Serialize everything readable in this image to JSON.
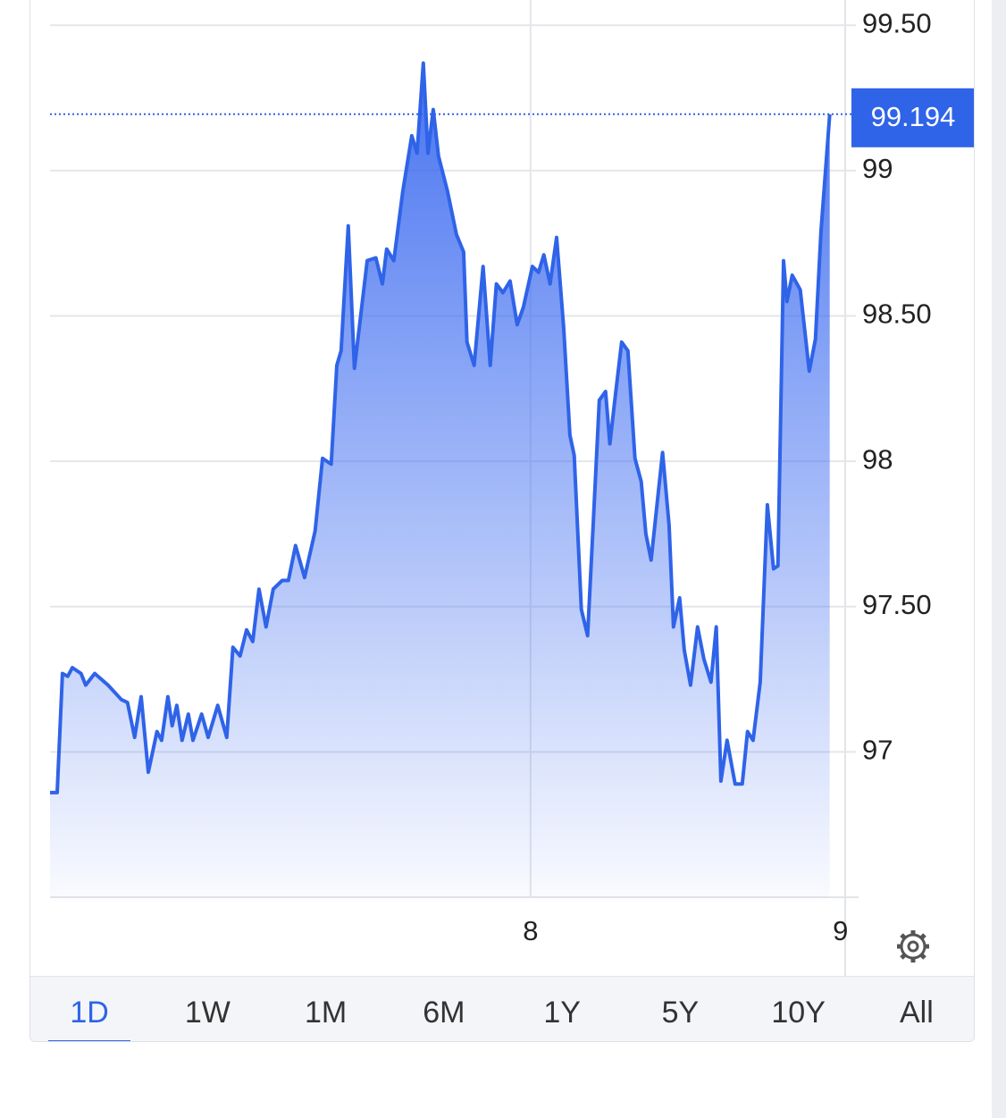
{
  "chart_data": {
    "type": "area",
    "x": [
      6.45,
      6.473,
      6.49,
      6.507,
      6.522,
      6.55,
      6.565,
      6.594,
      6.637,
      6.68,
      6.7,
      6.723,
      6.744,
      6.767,
      6.795,
      6.81,
      6.83,
      6.844,
      6.859,
      6.876,
      6.896,
      6.911,
      6.939,
      6.96,
      6.991,
      7.02,
      7.04,
      7.063,
      7.084,
      7.104,
      7.124,
      7.147,
      7.17,
      7.199,
      7.219,
      7.242,
      7.271,
      7.305,
      7.329,
      7.357,
      7.375,
      7.389,
      7.412,
      7.432,
      7.452,
      7.473,
      7.501,
      7.522,
      7.536,
      7.559,
      7.588,
      7.617,
      7.634,
      7.654,
      7.669,
      7.686,
      7.703,
      7.732,
      7.761,
      7.784,
      7.795,
      7.818,
      7.847,
      7.87,
      7.89,
      7.911,
      7.934,
      7.957,
      7.977,
      8.006,
      8.026,
      8.043,
      8.063,
      8.084,
      8.107,
      8.127,
      8.141,
      8.164,
      8.184,
      8.202,
      8.222,
      8.242,
      8.256,
      8.274,
      8.294,
      8.314,
      8.337,
      8.357,
      8.372,
      8.389,
      8.409,
      8.426,
      8.447,
      8.461,
      8.481,
      8.496,
      8.516,
      8.539,
      8.559,
      8.582,
      8.599,
      8.614,
      8.634,
      8.66,
      8.683,
      8.7,
      8.718,
      8.741,
      8.764,
      8.784,
      8.798,
      8.816,
      8.827,
      8.844,
      8.87,
      8.899,
      8.919,
      8.937,
      8.965
    ],
    "values": [
      96.86,
      96.86,
      97.27,
      97.26,
      97.29,
      97.27,
      97.23,
      97.27,
      97.23,
      97.18,
      97.17,
      97.05,
      97.19,
      96.93,
      97.07,
      97.04,
      97.19,
      97.09,
      97.16,
      97.04,
      97.13,
      97.04,
      97.13,
      97.05,
      97.16,
      97.05,
      97.36,
      97.33,
      97.42,
      97.38,
      97.56,
      97.43,
      97.56,
      97.59,
      97.59,
      97.71,
      97.6,
      97.76,
      98.01,
      97.99,
      98.33,
      98.38,
      98.81,
      98.32,
      98.5,
      98.69,
      98.7,
      98.61,
      98.73,
      98.69,
      98.93,
      99.12,
      99.06,
      99.37,
      99.06,
      99.21,
      99.05,
      98.93,
      98.78,
      98.72,
      98.41,
      98.33,
      98.67,
      98.33,
      98.61,
      98.58,
      98.62,
      98.47,
      98.53,
      98.67,
      98.65,
      98.71,
      98.61,
      98.77,
      98.46,
      98.09,
      98.02,
      97.49,
      97.4,
      97.78,
      98.21,
      98.24,
      98.06,
      98.23,
      98.41,
      98.38,
      98.01,
      97.93,
      97.75,
      97.66,
      97.86,
      98.03,
      97.78,
      97.43,
      97.53,
      97.35,
      97.23,
      97.43,
      97.32,
      97.24,
      97.43,
      96.9,
      97.04,
      96.89,
      96.89,
      97.07,
      97.04,
      97.24,
      97.85,
      97.63,
      97.64,
      98.69,
      98.55,
      98.64,
      98.59,
      98.31,
      98.42,
      98.79,
      99.194
    ],
    "color": "#2f63e8",
    "last_price": 99.194,
    "xlim": [
      6.45,
      9.015
    ],
    "xticks": [
      8,
      9
    ],
    "ylim": [
      96.5,
      99.59
    ],
    "yticks": [
      {
        "value": 99.5,
        "label": "99.50"
      },
      99,
      {
        "value": 98.5,
        "label": "98.50"
      },
      98,
      {
        "value": 97.5,
        "label": "97.50"
      },
      97
    ],
    "grid": true
  },
  "range_buttons": [
    "1D",
    "1W",
    "1M",
    "6M",
    "1Y",
    "5Y",
    "10Y",
    "All"
  ]
}
